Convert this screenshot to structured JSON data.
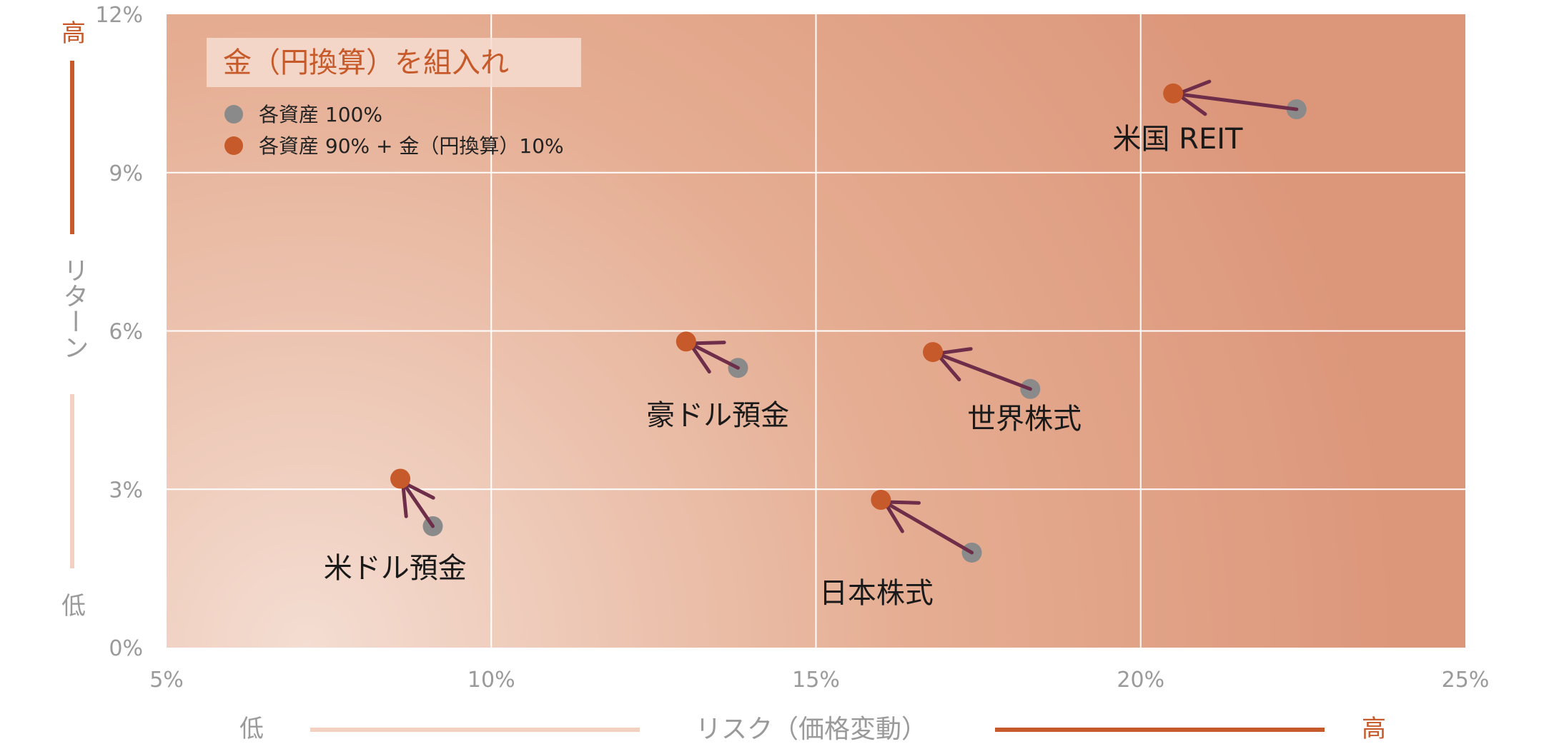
{
  "chart_data": {
    "type": "scatter",
    "legend": {
      "title": "金（円換算）を組入れ",
      "items": [
        {
          "label": "各資産 100%",
          "color": "#8a8a8a"
        },
        {
          "label": "各資産 90% + 金（円換算）10%",
          "color": "#c75a2a"
        }
      ],
      "placement": "top-left"
    },
    "xlabel": "リスク（価格変動）",
    "ylabel": "リターン",
    "xlim": [
      5,
      25
    ],
    "ylim": [
      0,
      12
    ],
    "x_ticks": [
      "5%",
      "10%",
      "15%",
      "20%",
      "25%"
    ],
    "y_ticks": [
      "0%",
      "3%",
      "6%",
      "9%",
      "12%"
    ],
    "x_tick_values": [
      5,
      10,
      15,
      20,
      25
    ],
    "y_tick_values": [
      0,
      3,
      6,
      9,
      12
    ],
    "grid": true,
    "axis_high": "高",
    "axis_low": "低",
    "colors": {
      "before": "#8a8a8a",
      "after": "#c75a2a",
      "arrow": "#6e2d48",
      "bg_light": "#f4ddd2",
      "bg_dark": "#dc967a",
      "grid": "#ffffff"
    },
    "points": [
      {
        "name": "米ドル預金",
        "before": {
          "x": 9.1,
          "y": 2.3
        },
        "after": {
          "x": 8.6,
          "y": 3.2
        }
      },
      {
        "name": "豪ドル預金",
        "before": {
          "x": 13.8,
          "y": 5.3
        },
        "after": {
          "x": 13.0,
          "y": 5.8
        }
      },
      {
        "name": "世界株式",
        "before": {
          "x": 18.3,
          "y": 4.9
        },
        "after": {
          "x": 16.8,
          "y": 5.6
        }
      },
      {
        "name": "日本株式",
        "before": {
          "x": 17.4,
          "y": 1.8
        },
        "after": {
          "x": 16.0,
          "y": 2.8
        }
      },
      {
        "name": "米国 REIT",
        "before": {
          "x": 22.4,
          "y": 10.2
        },
        "after": {
          "x": 20.5,
          "y": 10.5
        }
      }
    ]
  }
}
